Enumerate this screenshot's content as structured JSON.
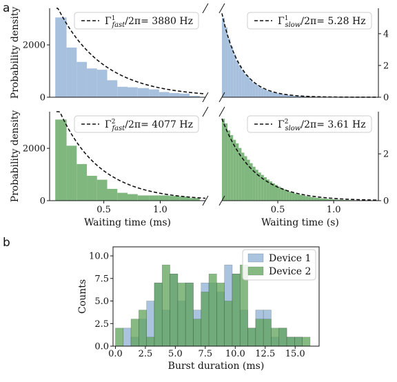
{
  "panels": [
    {
      "letter": "a"
    },
    {
      "letter": "b"
    }
  ],
  "chart_data": [
    {
      "type": "bar",
      "panel": "a",
      "position": "top-left",
      "ylabel": "Probability density",
      "yticks": [
        "0",
        "2000"
      ],
      "ylim": [
        0,
        3400
      ],
      "xlim": [
        0.02,
        1.4
      ],
      "bin_edges": [
        0.07,
        0.17,
        0.26,
        0.35,
        0.44,
        0.53,
        0.62,
        0.71,
        0.8,
        0.9,
        0.99,
        1.08,
        1.17,
        1.26,
        1.35
      ],
      "values": [
        3050,
        1900,
        1350,
        1100,
        1050,
        650,
        400,
        380,
        350,
        300,
        200,
        160,
        140,
        50
      ],
      "fit": {
        "type": "exponential",
        "amplitude": 3520,
        "rate": 2.5,
        "x_start": 0.08,
        "x_end": 1.4
      },
      "legend": {
        "pre": "Γ",
        "sup": "1",
        "sub": "fast",
        "post": "/2π= 3880 Hz"
      },
      "color": "#a7c0dd"
    },
    {
      "type": "bar",
      "panel": "a",
      "position": "top-right",
      "yticks": [
        "0",
        "2",
        "4"
      ],
      "ylim": [
        0,
        5.6
      ],
      "xlim": [
        0,
        1.4
      ],
      "bin_edges": [
        0.0,
        0.025,
        0.05,
        0.075,
        0.1,
        0.125,
        0.15,
        0.175,
        0.2,
        0.225,
        0.25,
        0.275,
        0.3,
        0.325,
        0.35,
        0.375,
        0.4,
        0.425,
        0.45,
        0.475,
        0.5,
        0.525,
        0.55,
        0.575,
        0.6,
        0.625,
        0.65,
        0.675,
        0.7,
        0.725,
        0.75,
        0.775,
        0.8,
        0.825,
        0.85,
        0.875,
        0.9,
        0.925,
        0.95,
        0.975,
        1.0,
        1.025,
        1.05,
        1.075,
        1.1,
        1.125,
        1.15,
        1.175,
        1.2,
        1.225,
        1.25,
        1.275,
        1.3,
        1.325,
        1.35,
        1.375,
        1.4
      ],
      "values": [
        5.0,
        4.4,
        3.7,
        3.2,
        2.7,
        2.3,
        2.0,
        1.7,
        1.45,
        1.25,
        1.05,
        0.9,
        0.78,
        0.66,
        0.56,
        0.48,
        0.41,
        0.35,
        0.3,
        0.26,
        0.22,
        0.19,
        0.16,
        0.14,
        0.12,
        0.1,
        0.085,
        0.072,
        0.062,
        0.053,
        0.045,
        0.038,
        0.033,
        0.028,
        0.024,
        0.02,
        0.017,
        0.015,
        0.013,
        0.011,
        0.009,
        0.008,
        0.007,
        0.006,
        0.005,
        0.004,
        0.0035,
        0.003,
        0.0025,
        0.002,
        0.0017,
        0.0015,
        0.0012,
        0.001,
        0.0008,
        0.0007
      ],
      "fit": {
        "type": "exponential",
        "amplitude": 5.28,
        "rate": 6.0,
        "x_start": 0.0,
        "x_end": 1.4
      },
      "legend": {
        "pre": "Γ",
        "sup": "1",
        "sub": "slow",
        "post": "/2π= 5.28 Hz"
      },
      "color": "#a7c0dd"
    },
    {
      "type": "bar",
      "panel": "a",
      "position": "bottom-left",
      "ylabel": "Probability density",
      "yticks": [
        "0",
        "2000"
      ],
      "ylim": [
        0,
        3400
      ],
      "xlim": [
        0.02,
        1.4
      ],
      "xticks": [
        "0.5",
        "1.0"
      ],
      "xlabel": "Waiting time (ms)",
      "bin_edges": [
        0.07,
        0.17,
        0.26,
        0.35,
        0.44,
        0.53,
        0.62,
        0.71,
        0.8,
        0.9,
        0.99,
        1.08,
        1.17,
        1.26,
        1.35
      ],
      "values": [
        3100,
        2100,
        1400,
        950,
        800,
        450,
        300,
        250,
        200,
        200,
        200,
        180,
        150,
        100
      ],
      "fit": {
        "type": "exponential",
        "amplitude": 3700,
        "rate": 2.8,
        "x_start": 0.08,
        "x_end": 1.4
      },
      "legend": {
        "pre": "Γ",
        "sup": "2",
        "sub": "fast",
        "post": "/2π= 4077 Hz"
      },
      "color": "#7fb77e"
    },
    {
      "type": "bar",
      "panel": "a",
      "position": "bottom-right",
      "yticks": [
        "0",
        "2"
      ],
      "ylim": [
        0,
        3.8
      ],
      "xlim": [
        0,
        1.4
      ],
      "xticks": [
        "0.5",
        "1.0"
      ],
      "xlabel": "Waiting time (s)",
      "bin_edges": [
        0.0,
        0.025,
        0.05,
        0.075,
        0.1,
        0.125,
        0.15,
        0.175,
        0.2,
        0.225,
        0.25,
        0.275,
        0.3,
        0.325,
        0.35,
        0.375,
        0.4,
        0.425,
        0.45,
        0.475,
        0.5,
        0.525,
        0.55,
        0.575,
        0.6,
        0.625,
        0.65,
        0.675,
        0.7,
        0.725,
        0.75,
        0.775,
        0.8,
        0.825,
        0.85,
        0.875,
        0.9,
        0.925,
        0.95,
        0.975,
        1.0,
        1.025,
        1.05,
        1.075,
        1.1,
        1.125,
        1.15,
        1.175,
        1.2,
        1.225,
        1.25,
        1.275,
        1.3,
        1.325,
        1.35,
        1.375,
        1.4
      ],
      "values": [
        3.5,
        3.3,
        3.0,
        2.8,
        2.6,
        2.45,
        2.25,
        2.05,
        1.9,
        1.75,
        1.6,
        1.45,
        1.32,
        1.2,
        1.1,
        1.0,
        0.9,
        0.82,
        0.74,
        0.67,
        0.6,
        0.54,
        0.48,
        0.43,
        0.38,
        0.33,
        0.3,
        0.27,
        0.24,
        0.21,
        0.19,
        0.17,
        0.15,
        0.13,
        0.12,
        0.1,
        0.09,
        0.08,
        0.07,
        0.06,
        0.05,
        0.045,
        0.04,
        0.035,
        0.03,
        0.026,
        0.022,
        0.019,
        0.016,
        0.014,
        0.012,
        0.01,
        0.008,
        0.007,
        0.006,
        0.005
      ],
      "fit": {
        "type": "exponential",
        "amplitude": 3.5,
        "rate": 3.6,
        "x_start": 0.0,
        "x_end": 1.4
      },
      "legend": {
        "pre": "Γ",
        "sup": "2",
        "sub": "slow",
        "post": "/2π= 3.61 Hz"
      },
      "color": "#7fb77e"
    },
    {
      "type": "bar",
      "panel": "b",
      "xlabel": "Burst duration (ms)",
      "ylabel": "Counts",
      "xlim": [
        -0.2,
        17.0
      ],
      "ylim": [
        0,
        11.0
      ],
      "xticks": [
        "0.0",
        "2.5",
        "5.0",
        "7.5",
        "10.0",
        "12.5",
        "15.0"
      ],
      "yticks": [
        "0.0",
        "2.5",
        "5.0",
        "7.5",
        "10.0"
      ],
      "bin_width": 0.65,
      "series": [
        {
          "name": "Device 1",
          "color": "#8eb0d6",
          "bin_starts": [
            0.65,
            1.3,
            1.95,
            2.6,
            3.25,
            3.9,
            4.55,
            5.2,
            5.85,
            6.5,
            7.15,
            7.8,
            8.45,
            9.1,
            9.75,
            10.4,
            11.05,
            11.7,
            12.35,
            13.0,
            13.65,
            14.3,
            14.95
          ],
          "values": [
            2,
            1,
            3,
            5,
            7,
            4,
            8,
            5,
            7,
            4,
            7,
            7,
            6,
            9,
            8,
            4,
            2,
            4,
            4,
            1,
            2,
            1,
            1
          ]
        },
        {
          "name": "Device 2",
          "color": "#5fa35a",
          "bin_starts": [
            0.0,
            1.3,
            1.95,
            2.6,
            3.25,
            3.9,
            4.55,
            5.2,
            5.85,
            6.5,
            7.15,
            7.8,
            8.45,
            9.1,
            9.75,
            10.4,
            11.05,
            11.7,
            12.35,
            13.0,
            13.65,
            14.3,
            14.95,
            15.6
          ],
          "values": [
            2,
            3,
            4,
            1,
            7,
            9,
            8,
            7,
            7,
            3,
            6,
            8,
            7,
            5,
            8,
            9,
            2,
            3,
            3,
            2,
            2,
            1,
            1,
            1
          ]
        }
      ],
      "legend_position": "top-right"
    }
  ]
}
